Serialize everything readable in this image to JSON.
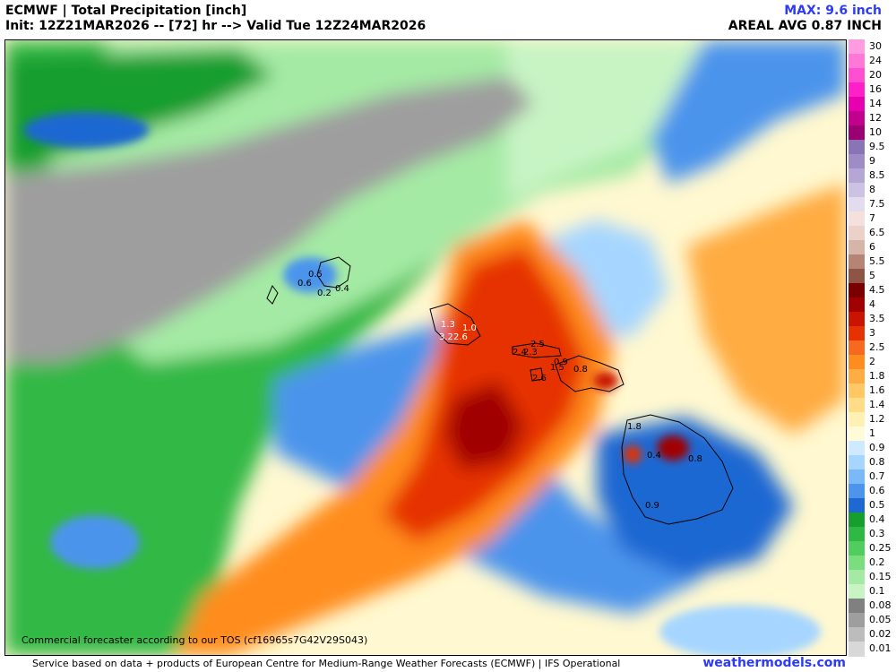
{
  "header": {
    "title": "ECMWF | Total Precipitation [inch]",
    "init": "Init: 12Z21MAR2026 -- [72] hr --> Valid Tue 12Z24MAR2026",
    "max": "MAX: 9.6 inch",
    "areal_avg": "AREAL AVG 0.87 INCH"
  },
  "legend": {
    "levels": [
      "30",
      "24",
      "20",
      "16",
      "14",
      "12",
      "10",
      "9.5",
      "9",
      "8.5",
      "8",
      "7.5",
      "7",
      "6.5",
      "6",
      "5.5",
      "5",
      "4.5",
      "4",
      "3.5",
      "3",
      "2.5",
      "2",
      "1.8",
      "1.6",
      "1.4",
      "1.2",
      "1",
      "0.9",
      "0.8",
      "0.7",
      "0.6",
      "0.5",
      "0.4",
      "0.3",
      "0.25",
      "0.2",
      "0.15",
      "0.1",
      "0.08",
      "0.05",
      "0.02",
      "0.01"
    ],
    "colors": [
      "#ff9ce0",
      "#ff78d8",
      "#ff4fd0",
      "#ff20c8",
      "#e600b0",
      "#c2008e",
      "#9a0072",
      "#8a74b6",
      "#9f8cc6",
      "#b6a6d6",
      "#ccc2e4",
      "#e2dcee",
      "#f4e0dc",
      "#ead2ca",
      "#d6b4a8",
      "#b48474",
      "#8e5446",
      "#7a0000",
      "#a00000",
      "#c81400",
      "#e63200",
      "#f56a1e",
      "#ff8c1e",
      "#ffac42",
      "#ffc864",
      "#ffdc88",
      "#fff0b4",
      "#fffad8",
      "#cdeaff",
      "#a6d6ff",
      "#7ab8f8",
      "#4c94ec",
      "#1e68d2",
      "#169e2e",
      "#30b844",
      "#52cc5e",
      "#7ade80",
      "#a4eaa4",
      "#c8f4c4",
      "#808080",
      "#9e9e9e",
      "#bcbcbc",
      "#d8d8d8"
    ]
  },
  "map": {
    "value_labels": [
      "0.5",
      "0.6",
      "0.2",
      "0.4",
      "1.3",
      "1.0",
      "3.2",
      "2.6",
      "2.5",
      "2.4",
      "2.3",
      "0.9",
      "1.5",
      "0.8",
      "2.6",
      "1.8",
      "0.4",
      "0.8",
      "0.9"
    ]
  },
  "footer": {
    "tos": "Commercial forecaster according to our TOS (cf16965s7G42V29S043)",
    "service": "Service based on data + products of European Centre for Medium-Range Weather Forecasts (ECMWF) | IFS Operational",
    "brand": "weathermodels.com"
  }
}
